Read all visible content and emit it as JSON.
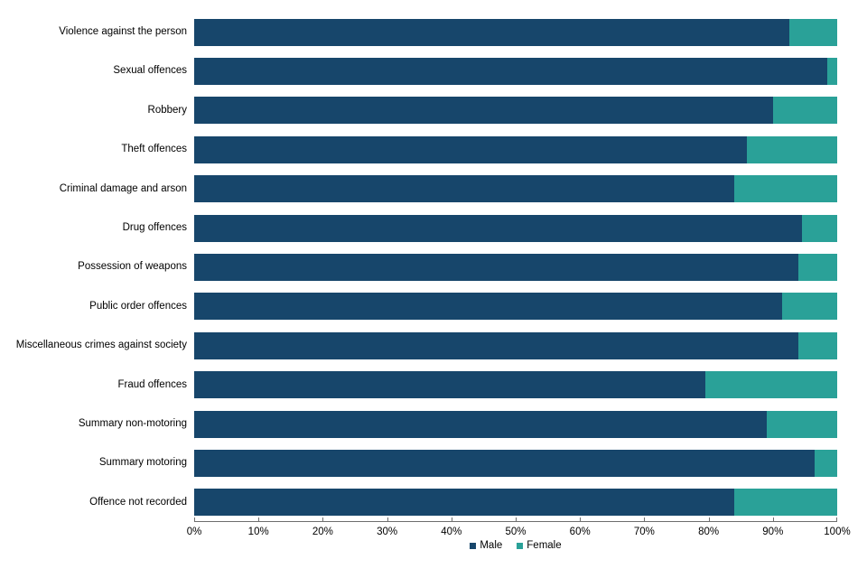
{
  "chart_data": {
    "type": "bar",
    "orientation": "horizontal",
    "stacked": true,
    "title": "",
    "xlabel": "",
    "ylabel": "",
    "unit": "%",
    "xlim": [
      0,
      100
    ],
    "x_tick_step": 10,
    "x_tick_labels": [
      "0%",
      "10%",
      "20%",
      "30%",
      "40%",
      "50%",
      "60%",
      "70%",
      "80%",
      "90%",
      "100%"
    ],
    "grid": false,
    "legend_position": "bottom-center",
    "categories": [
      "Violence against the person",
      "Sexual offences",
      "Robbery",
      "Theft offences",
      "Criminal damage and arson",
      "Drug offences",
      "Possession of weapons",
      "Public order offences",
      "Miscellaneous crimes against society",
      "Fraud offences",
      "Summary non-motoring",
      "Summary motoring",
      "Offence not recorded"
    ],
    "series": [
      {
        "name": "Male",
        "color": "#17466B",
        "values": [
          92.5,
          98.5,
          90,
          86,
          84,
          94.5,
          94,
          91.5,
          94,
          79.5,
          89,
          96.5,
          84
        ]
      },
      {
        "name": "Female",
        "color": "#2AA198",
        "values": [
          7.5,
          1.5,
          10,
          14,
          16,
          5.5,
          6,
          8.5,
          6,
          20.5,
          11,
          3.5,
          16
        ]
      }
    ]
  },
  "colors": {
    "male": "#17466B",
    "female": "#2AA198",
    "axis": "#6E6E6E",
    "text": "#000000",
    "background": "#FFFFFF"
  }
}
